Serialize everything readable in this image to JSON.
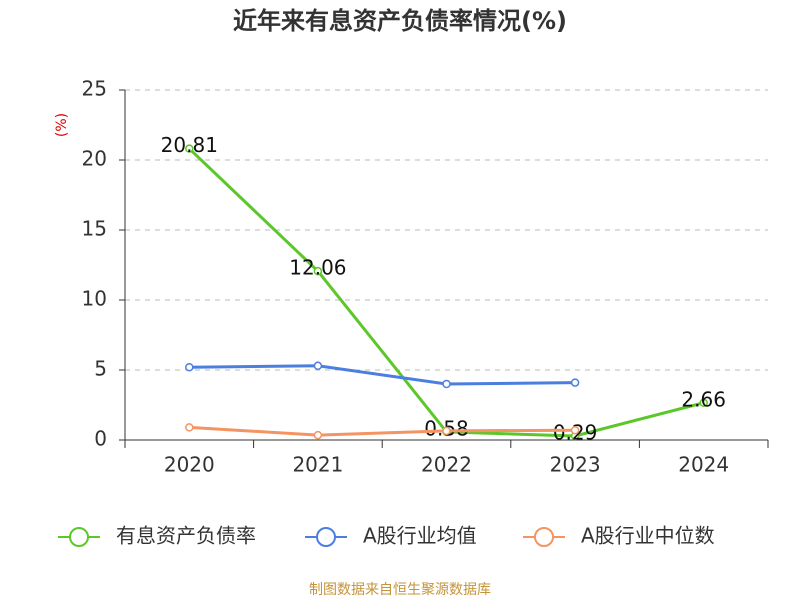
{
  "chart_data": {
    "type": "line",
    "title": "近年来有息资产负债率情况(%)",
    "y_label": "(%)",
    "categories": [
      "2020",
      "2021",
      "2022",
      "2023",
      "2024"
    ],
    "series": [
      {
        "name": "有息资产负债率",
        "color": "#5cc72a",
        "values": [
          20.81,
          12.06,
          0.58,
          0.29,
          2.66
        ],
        "labels": true
      },
      {
        "name": "A股行业均值",
        "color": "#4a7fe0",
        "values": [
          5.2,
          5.3,
          4.0,
          4.1,
          null
        ]
      },
      {
        "name": "A股行业中位数",
        "color": "#f39462",
        "values": [
          0.9,
          0.35,
          0.65,
          0.7,
          null
        ]
      }
    ],
    "ylim": [
      0,
      25
    ],
    "yticks": [
      0,
      5,
      10,
      15,
      20,
      25
    ],
    "grid": true,
    "legend": "bottom",
    "source": "制图数据来自恒生聚源数据库"
  }
}
